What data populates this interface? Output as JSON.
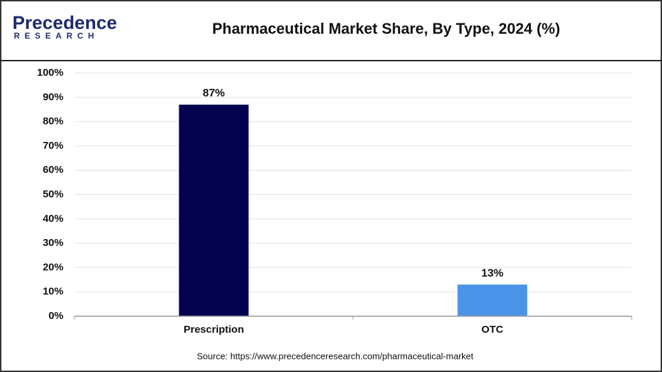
{
  "logo": {
    "name": "Precedence",
    "tagline": "RESEARCH"
  },
  "chart_data": {
    "type": "bar",
    "title": "Pharmaceutical Market Share, By Type, 2024 (%)",
    "categories": [
      "Prescription",
      "OTC"
    ],
    "values": [
      87,
      13
    ],
    "value_labels": [
      "87%",
      "13%"
    ],
    "colors": [
      "#02024f",
      "#4a94ea"
    ],
    "ylim": [
      0,
      100
    ],
    "yticks": [
      {
        "value": 0,
        "label": "0%"
      },
      {
        "value": 10,
        "label": "10%"
      },
      {
        "value": 20,
        "label": "20%"
      },
      {
        "value": 30,
        "label": "30%"
      },
      {
        "value": 40,
        "label": "40%"
      },
      {
        "value": 50,
        "label": "50%"
      },
      {
        "value": 60,
        "label": "60%"
      },
      {
        "value": 70,
        "label": "70%"
      },
      {
        "value": 80,
        "label": "80%"
      },
      {
        "value": 90,
        "label": "90%"
      },
      {
        "value": 100,
        "label": "100%"
      }
    ],
    "grid": true,
    "source": "Source: https://www.precedenceresearch.com/pharmaceutical-market"
  }
}
